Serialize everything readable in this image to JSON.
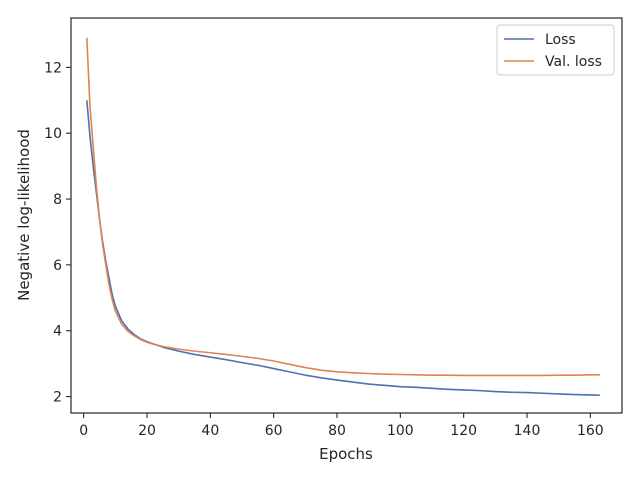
{
  "chart_data": {
    "type": "line",
    "xlabel": "Epochs",
    "ylabel": "Negative log-likelihood",
    "xlim": [
      -4,
      170
    ],
    "ylim": [
      1.5,
      13.5
    ],
    "xticks": [
      0,
      20,
      40,
      60,
      80,
      100,
      120,
      140,
      160
    ],
    "yticks": [
      2,
      4,
      6,
      8,
      10,
      12
    ],
    "grid": false,
    "legend_position": "top-right",
    "series": [
      {
        "name": "Loss",
        "color": "#4c72b0",
        "x": [
          1,
          2,
          3,
          4,
          5,
          6,
          7,
          8,
          9,
          10,
          12,
          14,
          16,
          18,
          20,
          22,
          25,
          30,
          35,
          40,
          45,
          50,
          55,
          60,
          65,
          70,
          75,
          80,
          85,
          90,
          95,
          100,
          105,
          110,
          115,
          120,
          125,
          130,
          135,
          140,
          145,
          150,
          155,
          160,
          163
        ],
        "y": [
          11.0,
          9.9,
          9.0,
          8.2,
          7.4,
          6.7,
          6.1,
          5.6,
          5.1,
          4.75,
          4.3,
          4.05,
          3.88,
          3.75,
          3.67,
          3.6,
          3.5,
          3.38,
          3.28,
          3.2,
          3.12,
          3.03,
          2.95,
          2.85,
          2.75,
          2.65,
          2.57,
          2.5,
          2.44,
          2.38,
          2.34,
          2.3,
          2.28,
          2.25,
          2.22,
          2.2,
          2.18,
          2.15,
          2.13,
          2.12,
          2.1,
          2.08,
          2.06,
          2.05,
          2.04
        ]
      },
      {
        "name": "Val. loss",
        "color": "#dd8452",
        "x": [
          1,
          2,
          3,
          4,
          5,
          6,
          7,
          8,
          9,
          10,
          12,
          14,
          16,
          18,
          20,
          22,
          25,
          30,
          35,
          40,
          45,
          50,
          55,
          60,
          65,
          70,
          75,
          80,
          85,
          90,
          95,
          100,
          105,
          110,
          115,
          120,
          125,
          130,
          135,
          140,
          145,
          150,
          155,
          160,
          163
        ],
        "y": [
          12.9,
          10.8,
          9.6,
          8.4,
          7.4,
          6.6,
          6.0,
          5.4,
          4.95,
          4.6,
          4.2,
          3.98,
          3.84,
          3.73,
          3.65,
          3.59,
          3.52,
          3.44,
          3.38,
          3.33,
          3.28,
          3.22,
          3.16,
          3.08,
          2.98,
          2.88,
          2.8,
          2.75,
          2.72,
          2.7,
          2.68,
          2.67,
          2.66,
          2.65,
          2.65,
          2.64,
          2.64,
          2.64,
          2.64,
          2.64,
          2.64,
          2.65,
          2.65,
          2.66,
          2.66
        ]
      }
    ]
  }
}
